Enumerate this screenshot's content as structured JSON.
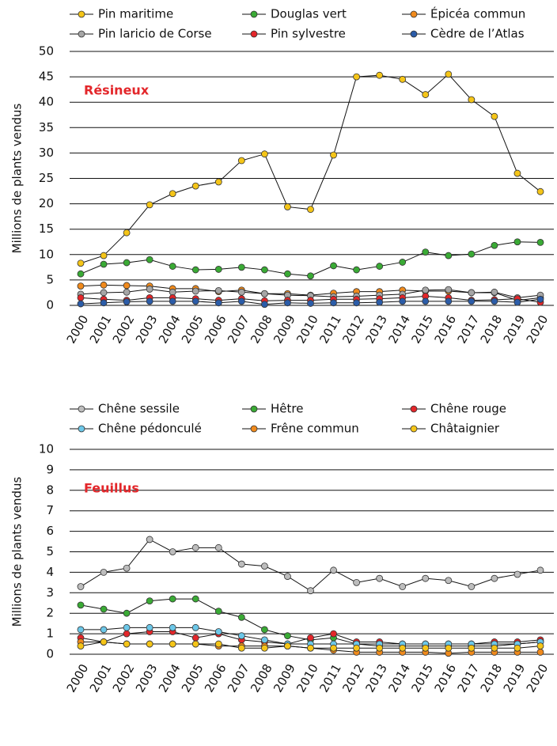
{
  "chart_data": [
    {
      "type": "line",
      "annotation": "Résineux",
      "y_label": "Millions de plants vendus",
      "categories": [
        "2000",
        "2001",
        "2002",
        "2003",
        "2004",
        "2005",
        "2006",
        "2007",
        "2008",
        "2009",
        "2010",
        "2011",
        "2012",
        "2013",
        "2014",
        "2015",
        "2016",
        "2017",
        "2018",
        "2019",
        "2020"
      ],
      "ylim": [
        0,
        50
      ],
      "yticks": [
        0,
        5,
        10,
        15,
        20,
        25,
        30,
        35,
        40,
        45,
        50
      ],
      "grid": true,
      "series": [
        {
          "name": "Pin maritime",
          "color": "#f5c518",
          "values": [
            8.3,
            9.8,
            14.3,
            19.8,
            22,
            23.5,
            24.3,
            28.5,
            29.8,
            19.4,
            18.9,
            29.6,
            45,
            45.3,
            44.5,
            41.5,
            45.5,
            40.5,
            37.2,
            26,
            22.4
          ]
        },
        {
          "name": "Douglas vert",
          "color": "#3aaa35",
          "values": [
            6.2,
            8.1,
            8.4,
            9.0,
            7.7,
            7.0,
            7.1,
            7.5,
            7.0,
            6.2,
            5.8,
            7.8,
            7.0,
            7.7,
            8.5,
            10.5,
            9.8,
            10.1,
            11.8,
            12.5,
            12.4
          ]
        },
        {
          "name": "Épicéa commun",
          "color": "#f08a1c",
          "values": [
            3.8,
            4.0,
            3.9,
            3.8,
            3.3,
            3.3,
            2.7,
            3.0,
            2.3,
            2.3,
            2.0,
            2.4,
            2.7,
            2.7,
            3.0,
            2.8,
            2.8,
            2.5,
            2.5,
            1.0,
            1.5
          ]
        },
        {
          "name": "Pin laricio de Corse",
          "color": "#a6a6a6",
          "values": [
            2.2,
            2.5,
            2.6,
            3.2,
            2.6,
            2.8,
            2.9,
            2.6,
            2.3,
            2.0,
            1.9,
            1.7,
            1.8,
            2.0,
            2.2,
            3.0,
            3.1,
            2.5,
            2.6,
            1.5,
            2.0
          ]
        },
        {
          "name": "Pin sylvestre",
          "color": "#e3262a",
          "values": [
            1.5,
            1.2,
            1.0,
            1.5,
            1.5,
            1.3,
            1.0,
            1.3,
            0.9,
            1.0,
            1.0,
            1.2,
            1.2,
            1.3,
            1.5,
            1.8,
            1.5,
            1.0,
            1.1,
            1.3,
            0.6
          ]
        },
        {
          "name": "Cèdre de l’Atlas",
          "color": "#2b5ca8",
          "values": [
            0.3,
            0.5,
            0.7,
            0.8,
            0.8,
            0.8,
            0.5,
            0.8,
            0.2,
            0.5,
            0.4,
            0.5,
            0.5,
            0.6,
            0.8,
            0.8,
            0.8,
            0.8,
            0.8,
            0.6,
            1.2
          ]
        }
      ]
    },
    {
      "type": "line",
      "annotation": "Feuillus",
      "y_label": "Millions de plants vendus",
      "categories": [
        "2000",
        "2001",
        "2002",
        "2003",
        "2004",
        "2005",
        "2006",
        "2007",
        "2008",
        "2009",
        "2010",
        "2011",
        "2012",
        "2013",
        "2014",
        "2015",
        "2016",
        "2017",
        "2018",
        "2019",
        "2020"
      ],
      "ylim": [
        0,
        10
      ],
      "yticks": [
        0,
        1,
        2,
        3,
        4,
        5,
        6,
        7,
        8,
        9,
        10
      ],
      "grid": true,
      "series": [
        {
          "name": "Chêne sessile",
          "color": "#bdbdbd",
          "values": [
            3.3,
            4.0,
            4.2,
            5.6,
            5.0,
            5.2,
            5.2,
            4.4,
            4.3,
            3.8,
            3.1,
            4.1,
            3.5,
            3.7,
            3.3,
            3.7,
            3.6,
            3.3,
            3.7,
            3.9,
            4.1
          ]
        },
        {
          "name": "Hêtre",
          "color": "#3aaa35",
          "values": [
            2.4,
            2.2,
            2.0,
            2.6,
            2.7,
            2.7,
            2.1,
            1.8,
            1.2,
            0.9,
            0.7,
            0.8,
            0.5,
            0.4,
            0.4,
            0.4,
            0.4,
            0.4,
            0.4,
            0.5,
            0.6
          ]
        },
        {
          "name": "Chêne rouge",
          "color": "#e3262a",
          "values": [
            0.8,
            0.6,
            1.0,
            1.1,
            1.1,
            0.8,
            1.0,
            0.7,
            0.6,
            0.5,
            0.8,
            1.0,
            0.6,
            0.6,
            0.5,
            0.5,
            0.5,
            0.5,
            0.6,
            0.6,
            0.7
          ]
        },
        {
          "name": "Chêne pédonculé",
          "color": "#6cc7e8",
          "values": [
            1.2,
            1.2,
            1.3,
            1.3,
            1.3,
            1.3,
            1.1,
            0.9,
            0.7,
            0.5,
            0.5,
            0.5,
            0.5,
            0.5,
            0.5,
            0.5,
            0.5,
            0.5,
            0.5,
            0.5,
            0.6
          ]
        },
        {
          "name": "Frêne commun",
          "color": "#f08a1c",
          "values": [
            0.6,
            0.6,
            0.5,
            0.5,
            0.5,
            0.5,
            0.4,
            0.4,
            0.4,
            0.4,
            0.3,
            0.2,
            0.1,
            0.1,
            0.1,
            0.1,
            0.05,
            0.1,
            0.1,
            0.1,
            0.1
          ]
        },
        {
          "name": "Châtaignier",
          "color": "#f5c518",
          "values": [
            0.4,
            0.6,
            0.5,
            0.5,
            0.5,
            0.5,
            0.5,
            0.3,
            0.3,
            0.4,
            0.3,
            0.3,
            0.3,
            0.3,
            0.3,
            0.3,
            0.3,
            0.3,
            0.3,
            0.3,
            0.4
          ]
        }
      ]
    }
  ]
}
